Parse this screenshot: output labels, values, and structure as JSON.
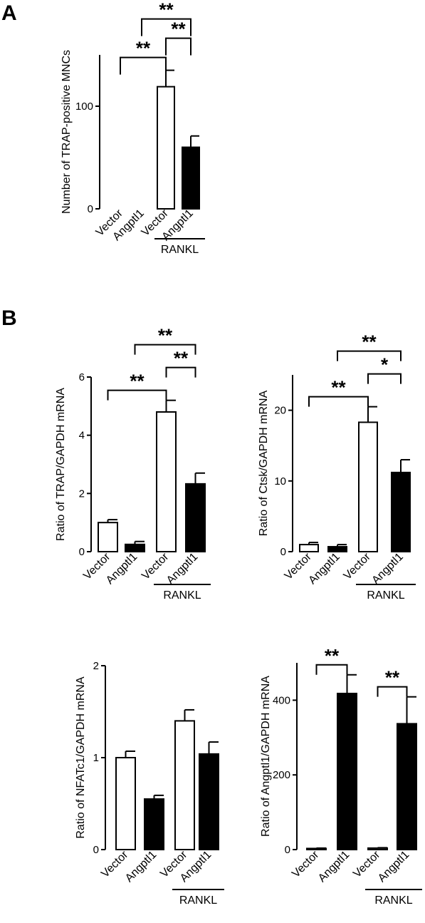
{
  "panels": [
    {
      "letter": "A"
    },
    {
      "letter": "B"
    }
  ],
  "chart_data": [
    {
      "type": "bar",
      "panel": "A",
      "categories": [
        "Vector",
        "Angptl1",
        "Vector",
        "Angptl1"
      ],
      "values": [
        0,
        0,
        119,
        60
      ],
      "errors": [
        0,
        0,
        16,
        11
      ],
      "fills": [
        "#ffffff",
        "#000000",
        "#ffffff",
        "#000000"
      ],
      "ylabel": "Number of TRAP-positive MNCs",
      "yticks": [
        0,
        100
      ],
      "ylim": [
        0,
        150
      ],
      "group_label": "RANKL",
      "significance": [
        {
          "from": 0,
          "to": 2,
          "label": "**"
        },
        {
          "from": 2,
          "to": 3,
          "label": "**"
        },
        {
          "from": 1,
          "to": 3,
          "label": "**"
        }
      ]
    },
    {
      "type": "bar",
      "panel": "B",
      "categories": [
        "Vector",
        "Angptl1",
        "Vector",
        "Angptl1"
      ],
      "values": [
        1.0,
        0.25,
        4.8,
        2.33
      ],
      "errors": [
        0.1,
        0.1,
        0.4,
        0.37
      ],
      "fills": [
        "#ffffff",
        "#000000",
        "#ffffff",
        "#000000"
      ],
      "ylabel": "Ratio of TRAP/GAPDH mRNA",
      "yticks": [
        0,
        2,
        4,
        6
      ],
      "ylim": [
        0,
        6
      ],
      "group_label": "RANKL",
      "significance": [
        {
          "from": 0,
          "to": 2,
          "label": "**"
        },
        {
          "from": 2,
          "to": 3,
          "label": "**"
        },
        {
          "from": 1,
          "to": 3,
          "label": "**"
        }
      ]
    },
    {
      "type": "bar",
      "panel": "B",
      "categories": [
        "Vector",
        "Angptl1",
        "Vector",
        "Angptl1"
      ],
      "values": [
        1.0,
        0.7,
        18.3,
        11.2
      ],
      "errors": [
        0.3,
        0.3,
        2.2,
        1.8
      ],
      "fills": [
        "#ffffff",
        "#000000",
        "#ffffff",
        "#000000"
      ],
      "ylabel": "Ratio of Ctsk/GAPDH mRNA",
      "yticks": [
        0,
        10,
        20
      ],
      "ylim": [
        0,
        25
      ],
      "group_label": "RANKL",
      "significance": [
        {
          "from": 0,
          "to": 2,
          "label": "**"
        },
        {
          "from": 2,
          "to": 3,
          "label": "*"
        },
        {
          "from": 1,
          "to": 3,
          "label": "**"
        }
      ]
    },
    {
      "type": "bar",
      "panel": "B",
      "categories": [
        "Vector",
        "Angptl1",
        "Vector",
        "Angptl1"
      ],
      "values": [
        1.0,
        0.55,
        1.4,
        1.04
      ],
      "errors": [
        0.07,
        0.04,
        0.12,
        0.13
      ],
      "fills": [
        "#ffffff",
        "#000000",
        "#ffffff",
        "#000000"
      ],
      "ylabel": "Ratio of NFATc1/GAPDH mRNA",
      "yticks": [
        0,
        1,
        2
      ],
      "ylim": [
        0,
        2
      ],
      "group_label": "RANKL",
      "significance": []
    },
    {
      "type": "bar",
      "panel": "B",
      "categories": [
        "Vector",
        "Angptl1",
        "Vector",
        "Angptl1"
      ],
      "values": [
        3,
        418,
        4,
        337
      ],
      "errors": [
        1,
        50,
        1,
        72
      ],
      "fills": [
        "#ffffff",
        "#000000",
        "#ffffff",
        "#000000"
      ],
      "ylabel": "Ratio of Angptl1/GAPDH mRNA",
      "yticks": [
        0,
        200,
        400
      ],
      "ylim": [
        0,
        500
      ],
      "group_label": "RANKL",
      "significance": [
        {
          "from": 0,
          "to": 1,
          "label": "**"
        },
        {
          "from": 2,
          "to": 3,
          "label": "**"
        }
      ]
    }
  ]
}
